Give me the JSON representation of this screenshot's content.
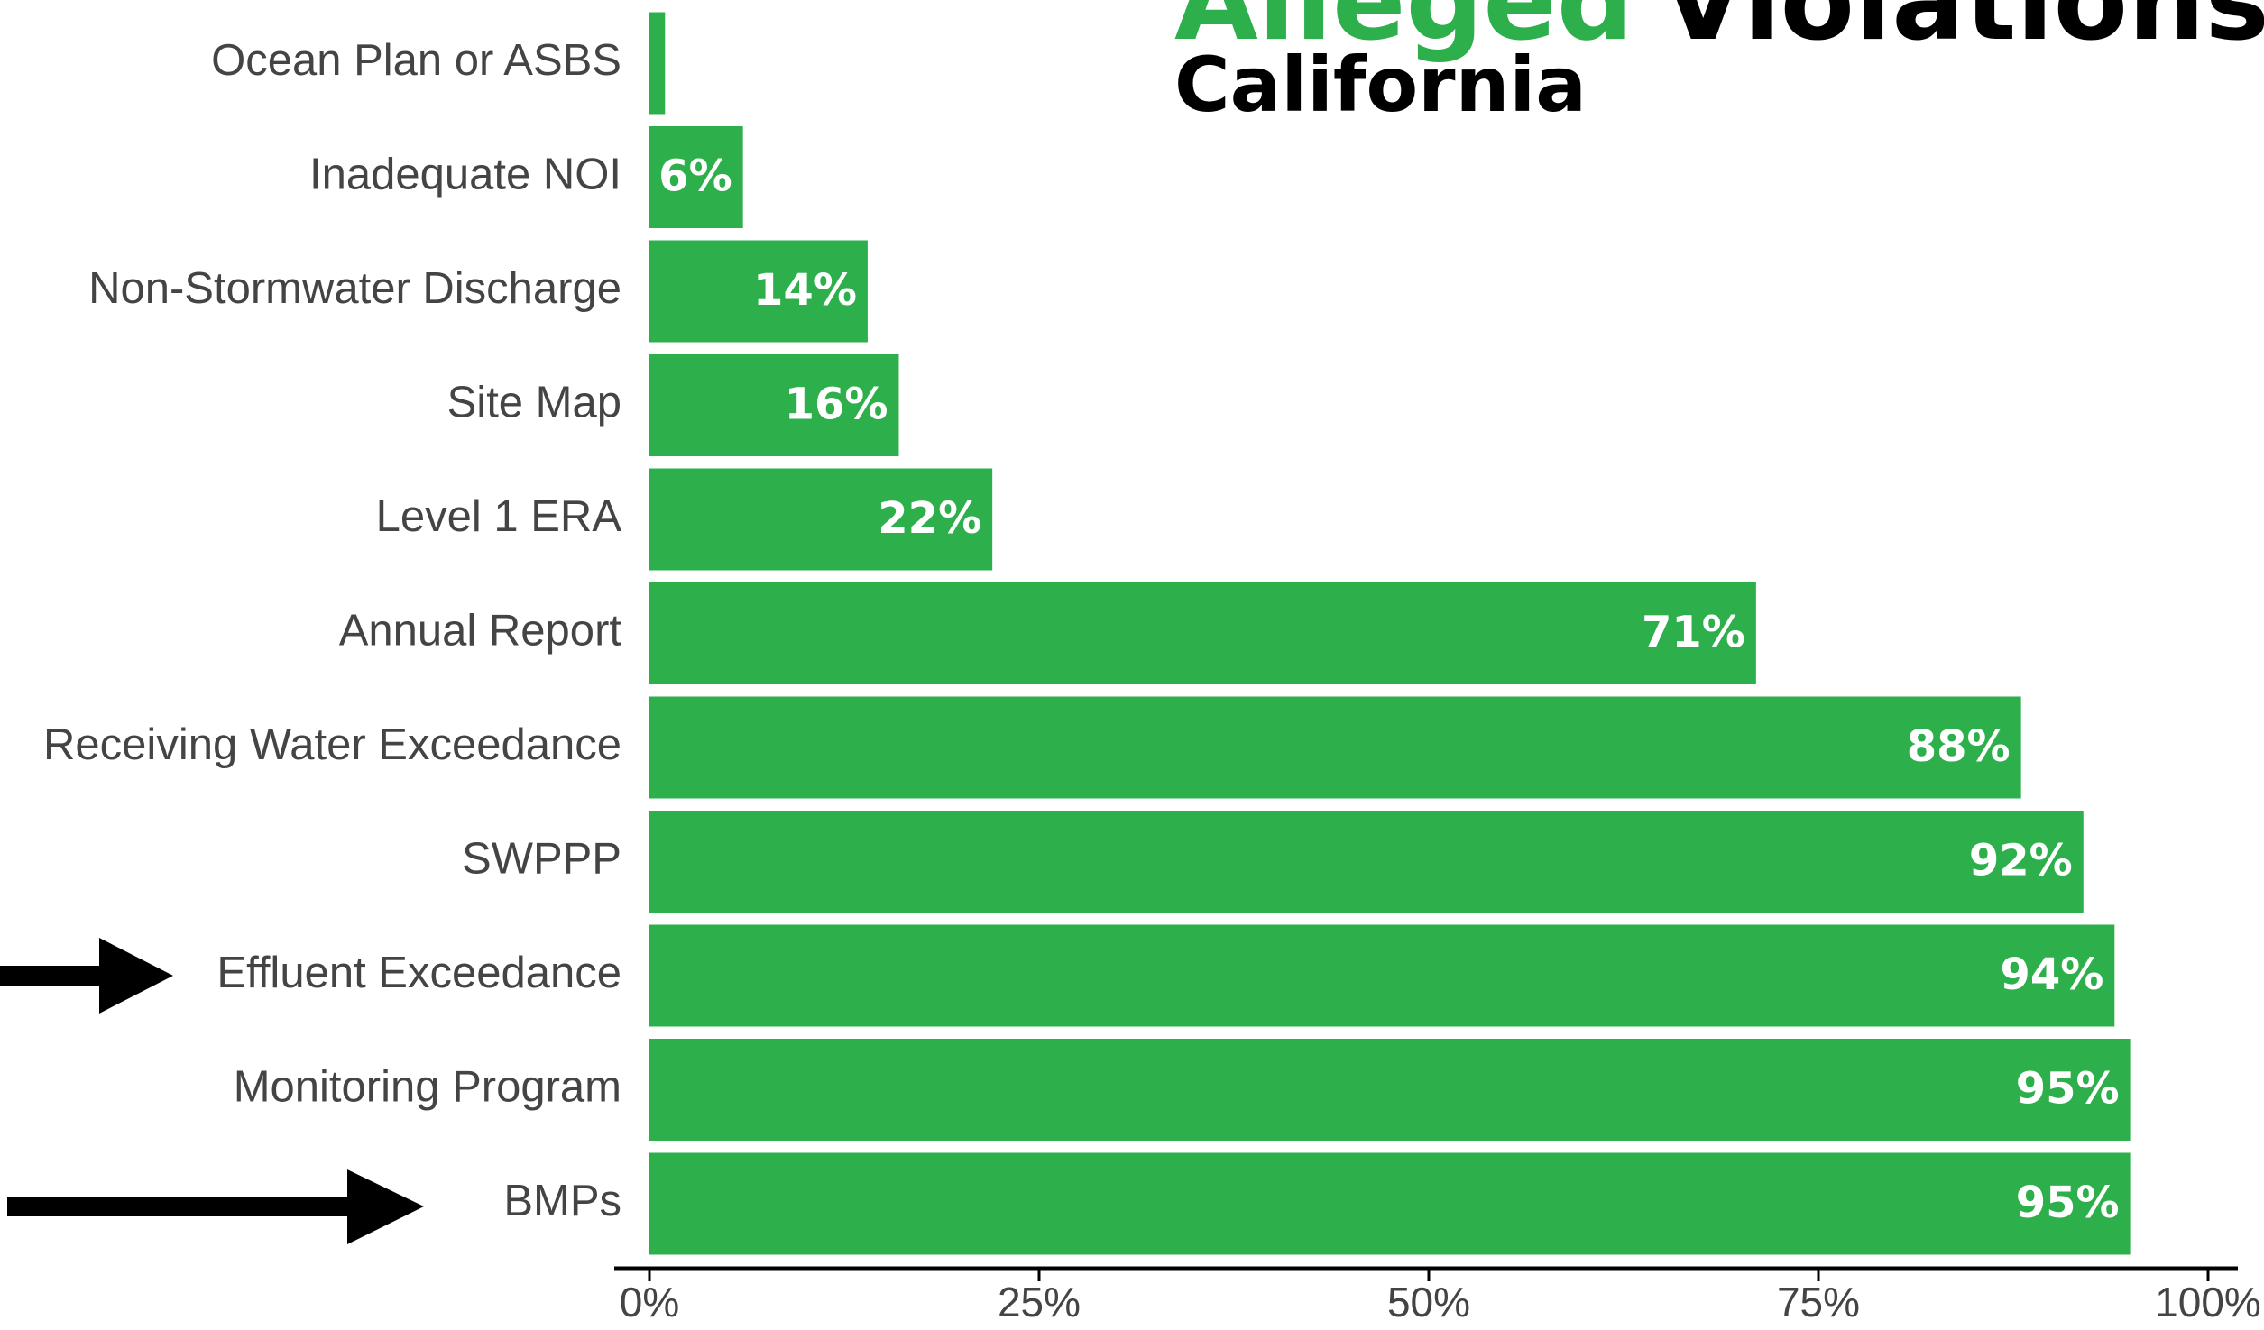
{
  "chart_data": {
    "type": "bar",
    "orientation": "horizontal",
    "title": [
      "Alleged",
      "Violations"
    ],
    "subtitle": "California",
    "categories": [
      "Ocean Plan or ASBS",
      "Inadequate NOI",
      "Non-Stormwater Discharge",
      "Site Map",
      "Level 1 ERA",
      "Annual Report",
      "Receiving Water Exceedance",
      "SWPPP",
      "Effluent Exceedance",
      "Monitoring Program",
      "BMPs"
    ],
    "values": [
      1,
      6,
      14,
      16,
      22,
      71,
      88,
      92,
      94,
      95,
      95
    ],
    "value_labels": [
      null,
      "6%",
      "14%",
      "16%",
      "22%",
      "71%",
      "88%",
      "92%",
      "94%",
      "95%",
      "95%"
    ],
    "color": "#2db04b",
    "title_colors": [
      "#2db04b",
      "#000000"
    ],
    "xlim": [
      0,
      100
    ],
    "xticks": [
      {
        "value": 0,
        "label": "0%"
      },
      {
        "value": 25,
        "label": "25%"
      },
      {
        "value": 50,
        "label": "50%"
      },
      {
        "value": 75,
        "label": "75%"
      },
      {
        "value": 100,
        "label": "100%"
      }
    ]
  }
}
